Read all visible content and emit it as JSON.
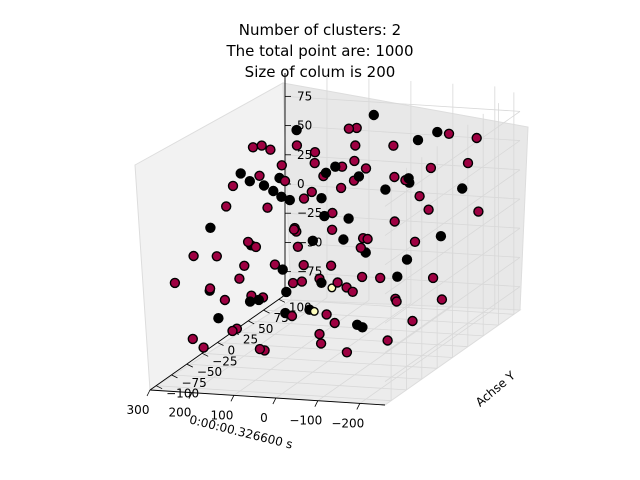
{
  "chart_data": {
    "type": "scatter",
    "projection": "3d",
    "title_lines": [
      "Number of clusters: 2",
      "The total point are: 1000",
      "Size of colum is 200"
    ],
    "xlabel": "0:00:00.326600 s",
    "ylabel": "Achse Y",
    "zlabel": "",
    "x_ticks": [
      "−200",
      "−100",
      "0",
      "100",
      "200",
      "300"
    ],
    "y_ticks": [
      "−100",
      "−75",
      "−50",
      "−25",
      "0",
      "25",
      "50",
      "75",
      "100"
    ],
    "z_ticks": [
      "−75",
      "−50",
      "−25",
      "0",
      "25",
      "50",
      "75"
    ],
    "colors": {
      "cluster_a": "#9e0142",
      "cluster_b": "#000000",
      "centroid": "#ffffbf",
      "edge": "#000000"
    },
    "series": [
      {
        "name": "",
        "color": "#9e0142",
        "points": [
          [
            -230,
            60,
            70
          ],
          [
            -180,
            80,
            40
          ],
          [
            -150,
            40,
            50
          ],
          [
            -120,
            90,
            60
          ],
          [
            -200,
            -20,
            10
          ],
          [
            -170,
            30,
            -40
          ],
          [
            -110,
            -60,
            -20
          ],
          [
            -90,
            20,
            75
          ],
          [
            -60,
            60,
            30
          ],
          [
            -40,
            -10,
            55
          ],
          [
            -20,
            70,
            -10
          ],
          [
            10,
            90,
            20
          ],
          [
            30,
            40,
            65
          ],
          [
            50,
            -30,
            45
          ],
          [
            70,
            80,
            -30
          ],
          [
            90,
            10,
            35
          ],
          [
            110,
            -80,
            25
          ],
          [
            130,
            50,
            -55
          ],
          [
            150,
            -40,
            5
          ],
          [
            170,
            70,
            45
          ],
          [
            190,
            -20,
            -45
          ],
          [
            210,
            20,
            15
          ],
          [
            230,
            -60,
            -25
          ],
          [
            250,
            40,
            -70
          ],
          [
            270,
            -90,
            -10
          ],
          [
            -140,
            -90,
            -60
          ],
          [
            -100,
            -40,
            10
          ],
          [
            -60,
            -80,
            -50
          ],
          [
            -20,
            -50,
            -70
          ],
          [
            20,
            -70,
            -40
          ],
          [
            60,
            -95,
            -60
          ],
          [
            100,
            -60,
            -75
          ],
          [
            140,
            -85,
            -50
          ],
          [
            180,
            -70,
            -30
          ],
          [
            220,
            -95,
            -55
          ],
          [
            260,
            -50,
            -80
          ],
          [
            -80,
            30,
            -60
          ],
          [
            -30,
            10,
            -35
          ],
          [
            0,
            -20,
            -15
          ],
          [
            40,
            0,
            -65
          ],
          [
            80,
            -10,
            -20
          ],
          [
            120,
            0,
            -40
          ],
          [
            160,
            30,
            -5
          ],
          [
            200,
            60,
            -20
          ],
          [
            240,
            90,
            -45
          ],
          [
            -190,
            90,
            -5
          ],
          [
            -160,
            -70,
            30
          ],
          [
            -130,
            50,
            10
          ],
          [
            -70,
            -30,
            80
          ],
          [
            -10,
            30,
            50
          ],
          [
            60,
            50,
            75
          ],
          [
            100,
            90,
            60
          ],
          [
            140,
            20,
            70
          ],
          [
            180,
            -10,
            80
          ],
          [
            220,
            50,
            40
          ],
          [
            -220,
            10,
            -50
          ],
          [
            -50,
            90,
            5
          ],
          [
            0,
            60,
            -55
          ],
          [
            30,
            -60,
            30
          ],
          [
            70,
            30,
            10
          ],
          [
            110,
            -20,
            55
          ],
          [
            150,
            70,
            25
          ],
          [
            190,
            -50,
            60
          ],
          [
            230,
            10,
            70
          ],
          [
            -120,
            -10,
            -80
          ],
          [
            -40,
            -95,
            0
          ],
          [
            10,
            -40,
            80
          ],
          [
            50,
            20,
            -80
          ],
          [
            90,
            -50,
            -5
          ],
          [
            130,
            -30,
            85
          ],
          [
            170,
            -90,
            15
          ],
          [
            210,
            -30,
            -70
          ],
          [
            250,
            -20,
            30
          ],
          [
            280,
            30,
            -40
          ],
          [
            -200,
            -50,
            -30
          ],
          [
            -150,
            10,
            -70
          ],
          [
            -90,
            -80,
            40
          ],
          [
            -30,
            -30,
            -25
          ],
          [
            20,
            10,
            40
          ],
          [
            80,
            60,
            -65
          ],
          [
            120,
            80,
            30
          ],
          [
            160,
            -60,
            -15
          ],
          [
            200,
            0,
            50
          ],
          [
            240,
            -80,
            10
          ]
        ]
      },
      {
        "name": "",
        "color": "#000000",
        "points": [
          [
            -210,
            50,
            30
          ],
          [
            -170,
            -10,
            60
          ],
          [
            -130,
            70,
            -20
          ],
          [
            -100,
            0,
            45
          ],
          [
            -70,
            40,
            -45
          ],
          [
            -40,
            80,
            20
          ],
          [
            -10,
            -20,
            70
          ],
          [
            20,
            50,
            -30
          ],
          [
            40,
            -60,
            55
          ],
          [
            60,
            10,
            15
          ],
          [
            80,
            -40,
            -50
          ],
          [
            100,
            40,
            40
          ],
          [
            120,
            -70,
            -30
          ],
          [
            140,
            60,
            10
          ],
          [
            160,
            -20,
            50
          ],
          [
            180,
            30,
            -60
          ],
          [
            200,
            -80,
            35
          ],
          [
            220,
            0,
            -10
          ],
          [
            240,
            60,
            25
          ],
          [
            260,
            -40,
            -35
          ],
          [
            -150,
            -80,
            -40
          ],
          [
            -110,
            -50,
            75
          ],
          [
            -60,
            -10,
            -70
          ],
          [
            -20,
            90,
            -50
          ],
          [
            30,
            70,
            80
          ],
          [
            70,
            -90,
            -20
          ],
          [
            110,
            20,
            -70
          ],
          [
            150,
            -50,
            65
          ],
          [
            190,
            80,
            -35
          ],
          [
            230,
            -10,
            55
          ],
          [
            -180,
            30,
            85
          ],
          [
            -50,
            -70,
            -10
          ],
          [
            0,
            0,
            0
          ],
          [
            50,
            -80,
            70
          ],
          [
            90,
            70,
            -10
          ],
          [
            130,
            -10,
            -25
          ],
          [
            170,
            40,
            75
          ],
          [
            210,
            -60,
            -50
          ],
          [
            250,
            70,
            5
          ],
          [
            -90,
            60,
            65
          ]
        ]
      },
      {
        "name": "",
        "color": "#ffffbf",
        "points": [
          [
            20,
            -5,
            -40
          ],
          [
            40,
            -20,
            -55
          ]
        ]
      }
    ]
  }
}
